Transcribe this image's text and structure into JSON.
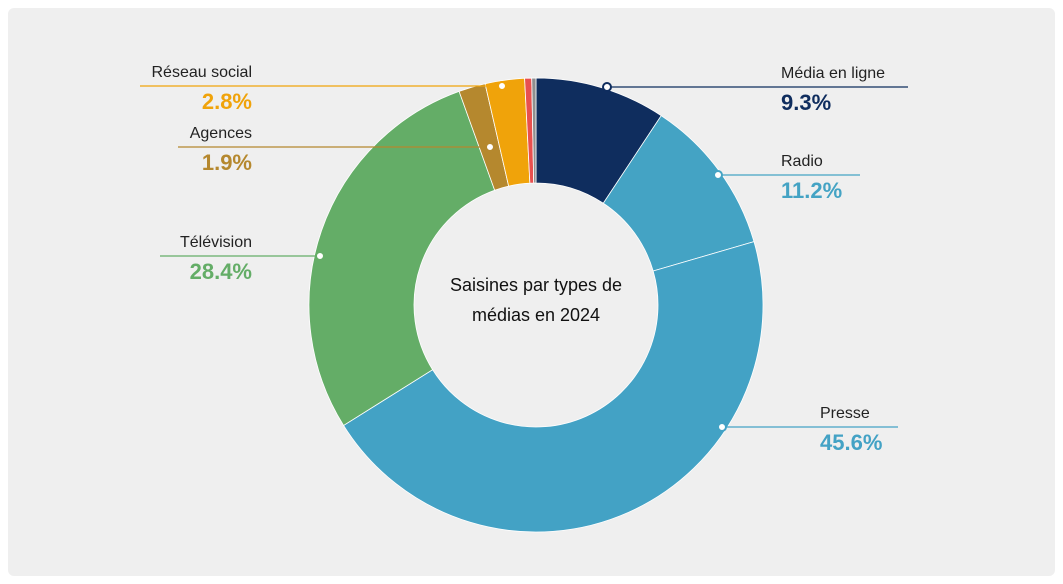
{
  "chart_data": {
    "type": "donut",
    "title": "Saisines par types de médias en 2024",
    "categories": [
      "Média en ligne",
      "Radio",
      "Presse",
      "Télévision",
      "Agences",
      "Réseau social",
      null,
      null
    ],
    "values": [
      9.3,
      11.2,
      45.6,
      28.4,
      1.9,
      2.8,
      0.5,
      0.3
    ],
    "value_labels": [
      "9.3%",
      "11.2%",
      "45.6%",
      "28.4%",
      "1.9%",
      "2.8%",
      null,
      null
    ],
    "colors": [
      "#0f2d5e",
      "#44a3c4",
      "#43a2c5",
      "#64ad67",
      "#b5882e",
      "#f0a30a",
      "#e8504f",
      "#8f8f8f"
    ]
  }
}
